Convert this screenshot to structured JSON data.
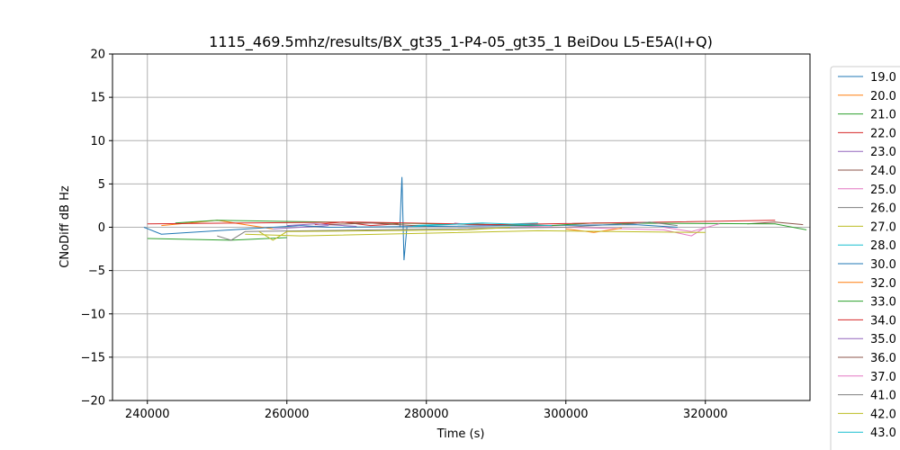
{
  "chart_data": {
    "type": "line",
    "title": "1115_469.5mhz/results/BX_gt35_1-P4-05_gt35_1 BeiDou L5-E5A(I+Q)",
    "xlabel": "Time (s)",
    "ylabel": "CNoDiff dB Hz",
    "xlim": [
      235000,
      335000
    ],
    "ylim": [
      -20,
      20
    ],
    "xticks": [
      240000,
      260000,
      280000,
      300000,
      320000
    ],
    "yticks": [
      -20,
      -15,
      -10,
      -5,
      0,
      5,
      10,
      15,
      20
    ],
    "grid": true,
    "legend_position": "right, outside",
    "series": [
      {
        "name": "19.0",
        "color": "#1f77b4",
        "x": [
          276200,
          276500,
          276800,
          277200
        ],
        "y": [
          0,
          5.8,
          -3.8,
          0
        ]
      },
      {
        "name": "20.0",
        "color": "#ff7f0e",
        "x": [
          242000,
          246000,
          250000,
          254000,
          258000
        ],
        "y": [
          0.2,
          0.5,
          0.8,
          0.3,
          -0.2
        ]
      },
      {
        "name": "21.0",
        "color": "#2ca02c",
        "x": [
          240000,
          252000,
          260000
        ],
        "y": [
          -1.3,
          -1.5,
          -1.2
        ]
      },
      {
        "name": "22.0",
        "color": "#d62728",
        "x": [
          264000,
          268000,
          272000,
          276000
        ],
        "y": [
          0.3,
          0.6,
          0.2,
          0.4
        ]
      },
      {
        "name": "23.0",
        "color": "#9467bd",
        "x": [
          258000,
          262000,
          266000
        ],
        "y": [
          -0.2,
          0.0,
          0.2
        ]
      },
      {
        "name": "24.0",
        "color": "#8c564b",
        "x": [
          326000,
          330000,
          334000
        ],
        "y": [
          0.4,
          0.6,
          0.3
        ]
      },
      {
        "name": "25.0",
        "color": "#e377c2",
        "x": [
          284000,
          286000,
          314000,
          318000,
          320000
        ],
        "y": [
          0.5,
          0.3,
          -0.3,
          -1.0,
          0.0
        ]
      },
      {
        "name": "26.0",
        "color": "#7f7f7f",
        "x": [
          250000,
          252000,
          254000,
          300000,
          310000
        ],
        "y": [
          -1.0,
          -1.5,
          -0.5,
          0.0,
          0.5
        ]
      },
      {
        "name": "27.0",
        "color": "#bcbd22",
        "x": [
          256000,
          258000,
          260000,
          286000,
          292000
        ],
        "y": [
          -0.5,
          -1.5,
          -0.5,
          -0.3,
          0.0
        ]
      },
      {
        "name": "28.0",
        "color": "#17becf",
        "x": [
          278000,
          284000,
          290000,
          296000
        ],
        "y": [
          0.2,
          0.4,
          0.3,
          0.5
        ]
      },
      {
        "name": "30.0",
        "color": "#1f77b4",
        "x": [
          239500,
          242000,
          262000,
          266000,
          310000,
          316000
        ],
        "y": [
          0.0,
          -0.8,
          0.2,
          0.0,
          0.3,
          0.0
        ]
      },
      {
        "name": "32.0",
        "color": "#ff7f0e",
        "x": [
          300000,
          304000,
          308000
        ],
        "y": [
          -0.2,
          -0.6,
          -0.1
        ]
      },
      {
        "name": "33.0",
        "color": "#2ca02c",
        "x": [
          244000,
          250000,
          298000,
          304000,
          330000,
          334500
        ],
        "y": [
          0.5,
          0.8,
          0.2,
          0.5,
          0.4,
          -0.3
        ]
      },
      {
        "name": "34.0",
        "color": "#d62728",
        "x": [
          240000,
          270000,
          290000,
          330000
        ],
        "y": [
          0.4,
          0.6,
          0.3,
          0.8
        ]
      },
      {
        "name": "35.0",
        "color": "#9467bd",
        "x": [
          260000,
          264000,
          270000
        ],
        "y": [
          0.2,
          0.4,
          0.1
        ]
      },
      {
        "name": "36.0",
        "color": "#8c564b",
        "x": [
          266000,
          272000,
          280000
        ],
        "y": [
          0.3,
          0.5,
          0.1
        ]
      },
      {
        "name": "37.0",
        "color": "#e377c2",
        "x": [
          314000,
          318000,
          322000
        ],
        "y": [
          0.0,
          -0.5,
          0.4
        ]
      },
      {
        "name": "41.0",
        "color": "#7f7f7f",
        "x": [
          308000,
          312000,
          316000
        ],
        "y": [
          0.3,
          0.6,
          0.2
        ]
      },
      {
        "name": "42.0",
        "color": "#bcbd22",
        "x": [
          254000,
          262000,
          296000,
          320000
        ],
        "y": [
          -0.8,
          -1.0,
          -0.4,
          -0.6
        ]
      },
      {
        "name": "43.0",
        "color": "#17becf",
        "x": [
          278000,
          288000,
          298000
        ],
        "y": [
          0.1,
          0.5,
          0.2
        ]
      }
    ]
  }
}
